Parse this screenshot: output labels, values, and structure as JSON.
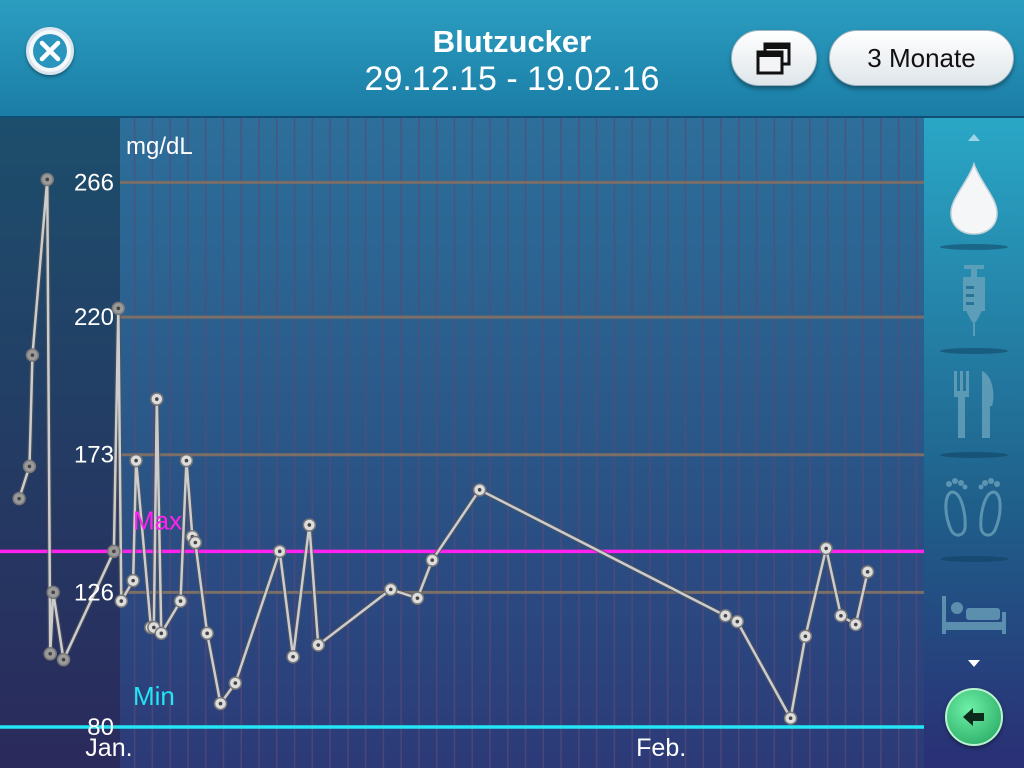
{
  "header": {
    "title": "Blutzucker",
    "date_range": "29.12.15 - 19.02.16",
    "range_button_label": "3 Monate",
    "close_icon": "close-icon",
    "windows_icon": "windows-icon"
  },
  "sidebar": {
    "items": [
      {
        "icon": "blood-drop-icon",
        "active": true
      },
      {
        "icon": "syringe-icon",
        "active": false
      },
      {
        "icon": "fork-knife-icon",
        "active": false
      },
      {
        "icon": "footprints-icon",
        "active": false
      },
      {
        "icon": "bed-icon",
        "active": false
      }
    ],
    "back_icon": "back-arrow-icon"
  },
  "colors": {
    "max_line": "#ff22ee",
    "min_line": "#22e6f5",
    "data_line": "#cccccc",
    "accent": "#1b7da6"
  },
  "chart_data": {
    "type": "line",
    "unit_label": "mg/dL",
    "y_ticks": [
      80,
      126,
      173,
      220,
      266
    ],
    "ylim": [
      66,
      288
    ],
    "x_start": "2015-12-29",
    "x_end": "2016-02-19",
    "x_tick_labels": [
      {
        "label": "Jan.",
        "date": "2016-01-01"
      },
      {
        "label": "Feb.",
        "date": "2016-02-01"
      }
    ],
    "max": {
      "label": "Max",
      "value": 140
    },
    "min": {
      "label": "Min",
      "value": 80
    },
    "series": [
      {
        "values": [
          {
            "x": "2015-12-28T12:00",
            "y": 158
          },
          {
            "x": "2015-12-29T02:00",
            "y": 169
          },
          {
            "x": "2015-12-29T06:00",
            "y": 207
          },
          {
            "x": "2015-12-30T02:00",
            "y": 267
          },
          {
            "x": "2015-12-30T06:00",
            "y": 105
          },
          {
            "x": "2015-12-30T10:00",
            "y": 126
          },
          {
            "x": "2015-12-31T00:00",
            "y": 103
          },
          {
            "x": "2016-01-02T20:00",
            "y": 140
          },
          {
            "x": "2016-01-03T02:00",
            "y": 223
          },
          {
            "x": "2016-01-03T06:00",
            "y": 123
          },
          {
            "x": "2016-01-03T22:00",
            "y": 130
          },
          {
            "x": "2016-01-04T02:00",
            "y": 171
          },
          {
            "x": "2016-01-04T22:00",
            "y": 114
          },
          {
            "x": "2016-01-05T02:00",
            "y": 114
          },
          {
            "x": "2016-01-05T06:00",
            "y": 192
          },
          {
            "x": "2016-01-05T12:00",
            "y": 112
          },
          {
            "x": "2016-01-06T14:00",
            "y": 123
          },
          {
            "x": "2016-01-06T22:00",
            "y": 171
          },
          {
            "x": "2016-01-07T06:00",
            "y": 145
          },
          {
            "x": "2016-01-07T10:00",
            "y": 143
          },
          {
            "x": "2016-01-08T02:00",
            "y": 112
          },
          {
            "x": "2016-01-08T20:00",
            "y": 88
          },
          {
            "x": "2016-01-09T16:00",
            "y": 95
          },
          {
            "x": "2016-01-12T04:00",
            "y": 140
          },
          {
            "x": "2016-01-12T22:00",
            "y": 104
          },
          {
            "x": "2016-01-13T20:00",
            "y": 149
          },
          {
            "x": "2016-01-14T08:00",
            "y": 108
          },
          {
            "x": "2016-01-18T10:00",
            "y": 127
          },
          {
            "x": "2016-01-19T22:00",
            "y": 124
          },
          {
            "x": "2016-01-20T18:00",
            "y": 137
          },
          {
            "x": "2016-01-23T10:00",
            "y": 161
          },
          {
            "x": "2016-02-06T06:00",
            "y": 118
          },
          {
            "x": "2016-02-06T22:00",
            "y": 116
          },
          {
            "x": "2016-02-09T22:00",
            "y": 83
          },
          {
            "x": "2016-02-10T18:00",
            "y": 111
          },
          {
            "x": "2016-02-11T22:00",
            "y": 141
          },
          {
            "x": "2016-02-12T18:00",
            "y": 118
          },
          {
            "x": "2016-02-13T14:00",
            "y": 115
          },
          {
            "x": "2016-02-14T06:00",
            "y": 133
          }
        ]
      }
    ]
  }
}
